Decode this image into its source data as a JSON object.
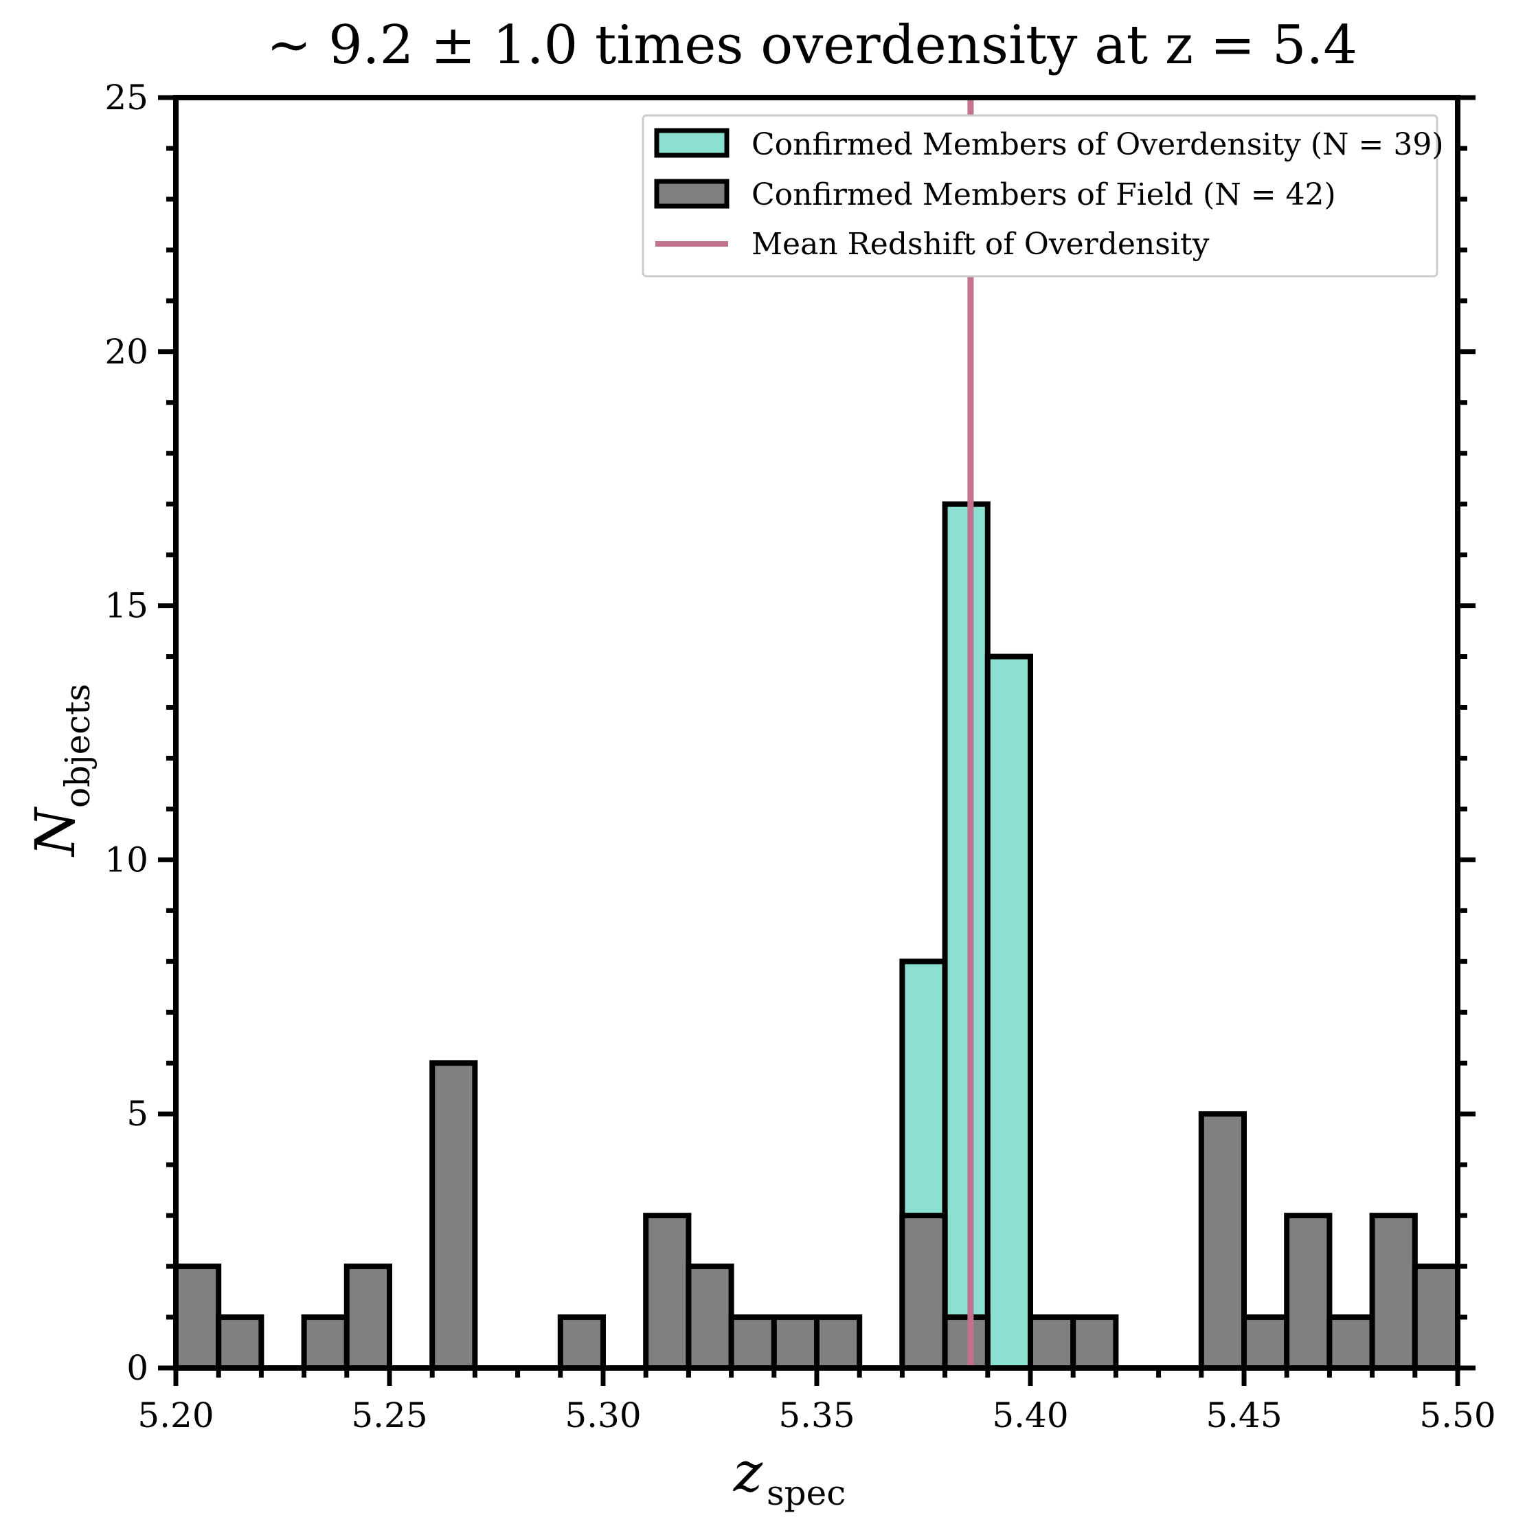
{
  "chart_data": {
    "type": "bar",
    "title": "~ 9.2 ± 1.0 times overdensity at z = 5.4",
    "xlabel": "z",
    "xlabel_sub": "spec",
    "ylabel": "N",
    "ylabel_sub": "objects",
    "xlim": [
      5.2,
      5.5
    ],
    "ylim": [
      0,
      25
    ],
    "bin_width": 0.01,
    "x_ticks": [
      "5.20",
      "5.25",
      "5.30",
      "5.35",
      "5.40",
      "5.45",
      "5.50"
    ],
    "y_ticks": [
      "0",
      "5",
      "10",
      "15",
      "20",
      "25"
    ],
    "legend_position": "top-right",
    "grid": false,
    "series": [
      {
        "name": "Confirmed Members of Overdensity (N = 39)",
        "color": "#8ce0d2",
        "bins": [
          {
            "x0": 5.37,
            "value": 8
          },
          {
            "x0": 5.38,
            "value": 17
          },
          {
            "x0": 5.39,
            "value": 14
          }
        ]
      },
      {
        "name": "Confirmed Members of Field (N = 42)",
        "color": "#808080",
        "bins": [
          {
            "x0": 5.2,
            "value": 2
          },
          {
            "x0": 5.21,
            "value": 1
          },
          {
            "x0": 5.23,
            "value": 1
          },
          {
            "x0": 5.24,
            "value": 2
          },
          {
            "x0": 5.26,
            "value": 6
          },
          {
            "x0": 5.29,
            "value": 1
          },
          {
            "x0": 5.31,
            "value": 3
          },
          {
            "x0": 5.32,
            "value": 2
          },
          {
            "x0": 5.33,
            "value": 1
          },
          {
            "x0": 5.34,
            "value": 1
          },
          {
            "x0": 5.35,
            "value": 1
          },
          {
            "x0": 5.37,
            "value": 3
          },
          {
            "x0": 5.38,
            "value": 1
          },
          {
            "x0": 5.4,
            "value": 1
          },
          {
            "x0": 5.41,
            "value": 1
          },
          {
            "x0": 5.44,
            "value": 5
          },
          {
            "x0": 5.45,
            "value": 1
          },
          {
            "x0": 5.46,
            "value": 3
          },
          {
            "x0": 5.47,
            "value": 1
          },
          {
            "x0": 5.48,
            "value": 3
          },
          {
            "x0": 5.49,
            "value": 2
          }
        ]
      }
    ],
    "mean_line": {
      "name": "Mean Redshift of Overdensity",
      "x": 5.386,
      "color": "#c0728f"
    }
  }
}
